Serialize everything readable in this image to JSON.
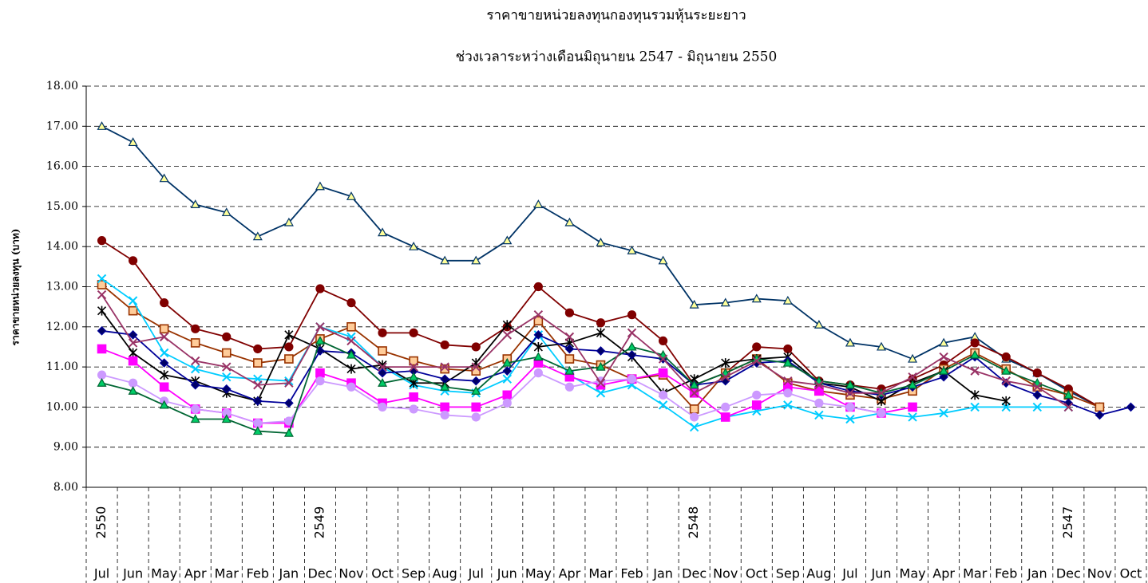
{
  "chart_data": {
    "type": "line",
    "title": "ราคาขายหน่วยลงทุนกองทุนรวมหุ้นระยะยาว",
    "subtitle": "ช่วงเวลาระหว่างเดือนมิถุนายน 2547 - มิถุนายน 2550",
    "y_label": "ราคาขายหน่วยลงทุน (บาท)",
    "categories": [
      "Jul",
      "Jun",
      "May",
      "Apr",
      "Mar",
      "Feb",
      "Jan",
      "Dec",
      "Nov",
      "Oct",
      "Sep",
      "Aug",
      "Jul",
      "Jun",
      "May",
      "Apr",
      "Mar",
      "Feb",
      "Jan",
      "Dec",
      "Nov",
      "Oct",
      "Sep",
      "Aug",
      "Jul",
      "Jun",
      "May",
      "Apr",
      "Mar",
      "Feb",
      "Jan",
      "Dec",
      "Nov",
      "Oct"
    ],
    "category_years": [
      "2550",
      null,
      null,
      null,
      null,
      null,
      null,
      "2549",
      null,
      null,
      null,
      null,
      null,
      null,
      null,
      null,
      null,
      null,
      null,
      "2548",
      null,
      null,
      null,
      null,
      null,
      null,
      null,
      null,
      null,
      null,
      null,
      "2547",
      null,
      null
    ],
    "ylim": [
      8,
      18
    ],
    "yticks": [
      {
        "value": 8,
        "label": "8.00"
      },
      {
        "value": 9,
        "label": "9.00"
      },
      {
        "value": 10,
        "label": "10.00"
      },
      {
        "value": 11,
        "label": "11.00"
      },
      {
        "value": 12,
        "label": "12.00"
      },
      {
        "value": 13,
        "label": "13.00"
      },
      {
        "value": 14,
        "label": "14.00"
      },
      {
        "value": 15,
        "label": "15.00"
      },
      {
        "value": 16,
        "label": "16.00"
      },
      {
        "value": 17,
        "label": "17.00"
      },
      {
        "value": 18,
        "label": "18.00"
      }
    ],
    "grid": true,
    "series": [
      {
        "color": "#003366",
        "marker": "triangle",
        "marker_fill": "#ffff99",
        "values": [
          17.0,
          16.6,
          15.7,
          15.05,
          14.85,
          14.25,
          14.6,
          15.5,
          15.25,
          14.35,
          14.0,
          13.65,
          13.65,
          14.15,
          15.05,
          14.6,
          14.1,
          13.9,
          13.65,
          12.55,
          12.6,
          12.7,
          12.65,
          12.05,
          11.6,
          11.5,
          11.2,
          11.6,
          11.75,
          11.2,
          10.85,
          10.4,
          10.0,
          null
        ]
      },
      {
        "color": "#800000",
        "marker": "circle",
        "marker_fill": "#800000",
        "values": [
          14.15,
          13.65,
          12.6,
          11.95,
          11.75,
          11.45,
          11.5,
          12.95,
          12.6,
          11.85,
          11.85,
          11.55,
          11.5,
          12.0,
          13.0,
          12.35,
          12.1,
          12.3,
          11.65,
          10.55,
          10.85,
          11.5,
          11.45,
          10.65,
          10.55,
          10.45,
          10.7,
          11.05,
          11.6,
          11.25,
          10.85,
          10.45,
          10.0,
          null
        ]
      },
      {
        "color": "#993300",
        "marker": "square",
        "marker_fill": "#ffcc99",
        "values": [
          13.05,
          12.4,
          11.95,
          11.6,
          11.35,
          11.1,
          11.2,
          11.7,
          12.0,
          11.4,
          11.15,
          10.95,
          10.9,
          11.2,
          12.15,
          11.2,
          11.05,
          10.7,
          10.8,
          9.95,
          10.85,
          11.2,
          10.6,
          10.4,
          10.3,
          10.2,
          10.4,
          10.95,
          11.35,
          10.95,
          10.5,
          10.3,
          10.0,
          null
        ]
      },
      {
        "color": "#00ccff",
        "marker": "x",
        "marker_fill": "#00ccff",
        "values": [
          13.2,
          12.65,
          11.35,
          10.95,
          10.75,
          10.7,
          10.65,
          12.0,
          11.75,
          11.0,
          10.55,
          10.4,
          10.35,
          10.7,
          11.8,
          10.8,
          10.35,
          10.55,
          10.05,
          9.5,
          9.75,
          9.9,
          10.05,
          9.8,
          9.7,
          9.85,
          9.75,
          9.85,
          10.0,
          10.0,
          10.0,
          10.0,
          null,
          null
        ]
      },
      {
        "color": "#000000",
        "marker": "star",
        "marker_fill": "#000000",
        "values": [
          12.4,
          11.35,
          10.8,
          10.65,
          10.35,
          10.15,
          11.8,
          11.45,
          10.95,
          11.05,
          10.6,
          10.6,
          11.1,
          12.05,
          11.5,
          11.6,
          11.85,
          11.25,
          10.35,
          10.7,
          11.1,
          11.2,
          11.25,
          10.6,
          10.5,
          10.15,
          10.6,
          10.9,
          10.3,
          10.15,
          null,
          null,
          null,
          null
        ]
      },
      {
        "color": "#000099",
        "marker": "diamond",
        "marker_fill": "#000066",
        "values": [
          11.9,
          11.8,
          11.1,
          10.55,
          10.45,
          10.15,
          10.1,
          11.4,
          11.35,
          10.85,
          10.9,
          10.7,
          10.65,
          10.9,
          11.8,
          11.45,
          11.4,
          11.3,
          11.2,
          10.55,
          10.65,
          11.1,
          11.15,
          10.6,
          10.4,
          10.3,
          10.5,
          10.75,
          11.25,
          10.6,
          10.3,
          10.1,
          9.8,
          10.0
        ]
      },
      {
        "color": "#ff00ff",
        "marker": "square",
        "marker_fill": "#ff00ff",
        "values": [
          11.45,
          11.15,
          10.5,
          9.95,
          9.85,
          9.6,
          9.6,
          10.85,
          10.6,
          10.1,
          10.25,
          10.0,
          10.0,
          10.3,
          11.1,
          10.75,
          10.55,
          10.7,
          10.85,
          10.35,
          9.75,
          10.05,
          10.5,
          10.4,
          10.0,
          9.85,
          10.0,
          null,
          null,
          null,
          null,
          null,
          null,
          null
        ]
      },
      {
        "color": "#cc99ff",
        "marker": "circle",
        "marker_fill": "#cc99ff",
        "values": [
          10.8,
          10.6,
          10.15,
          9.95,
          9.85,
          9.6,
          9.65,
          10.65,
          10.5,
          10.0,
          9.95,
          9.8,
          9.75,
          10.1,
          10.85,
          10.5,
          10.65,
          10.7,
          10.3,
          9.75,
          10.0,
          10.3,
          10.35,
          10.1,
          10.0,
          9.85,
          null,
          null,
          null,
          null,
          null,
          null,
          null,
          null
        ]
      },
      {
        "color": "#006633",
        "marker": "triangle",
        "marker_fill": "#00cc66",
        "values": [
          10.6,
          10.4,
          10.05,
          9.7,
          9.7,
          9.4,
          9.35,
          11.65,
          11.3,
          10.6,
          10.75,
          10.5,
          10.4,
          11.1,
          11.25,
          10.9,
          11.0,
          11.5,
          11.3,
          10.55,
          10.85,
          11.2,
          11.1,
          10.65,
          10.55,
          10.35,
          10.55,
          10.9,
          11.3,
          10.9,
          10.6,
          10.3,
          null,
          null
        ]
      },
      {
        "color": "#993366",
        "marker": "x",
        "marker_fill": "#993366",
        "values": [
          12.8,
          11.6,
          11.75,
          11.15,
          11.0,
          10.55,
          10.6,
          12.0,
          11.65,
          11.0,
          11.0,
          11.0,
          11.0,
          11.8,
          12.3,
          11.75,
          10.6,
          11.85,
          11.2,
          10.35,
          10.75,
          11.15,
          10.65,
          10.55,
          10.35,
          10.35,
          10.75,
          11.25,
          10.9,
          10.65,
          10.5,
          10.0,
          null,
          null
        ]
      }
    ]
  }
}
